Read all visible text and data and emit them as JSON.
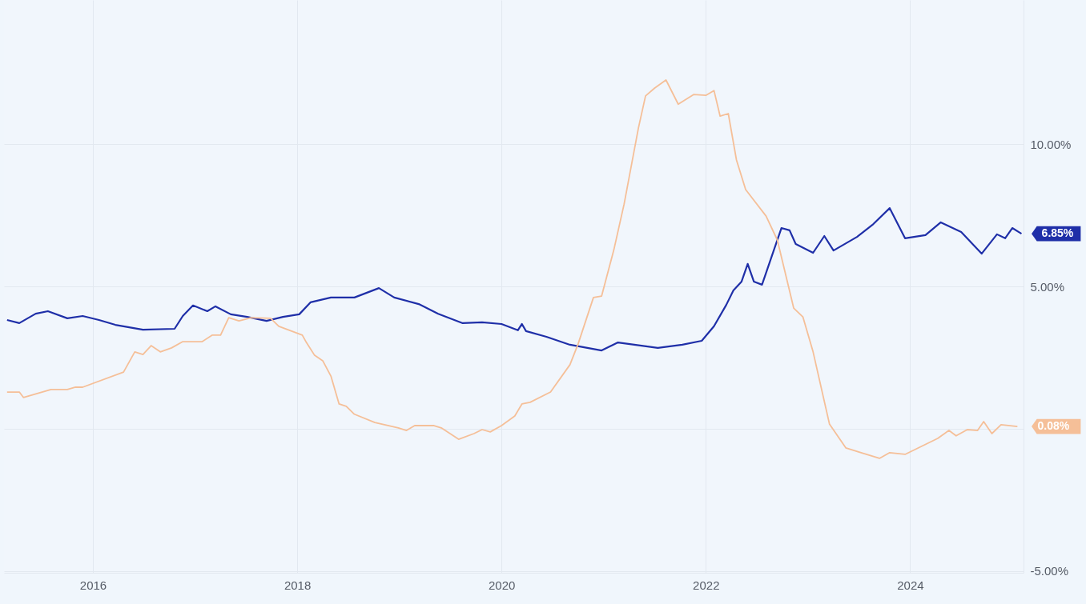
{
  "chart_data": {
    "type": "line",
    "xlim": [
      2015.13,
      2025.11
    ],
    "xticks": [
      2016,
      2018,
      2020,
      2022,
      2024
    ],
    "ylim": [
      -5.06,
      15.06
    ],
    "yticks": [
      {
        "value": 10,
        "label": "10.00%"
      },
      {
        "value": 5,
        "label": "5.00%"
      },
      {
        "value": 0,
        "label": null
      },
      {
        "value": -5,
        "label": "-5.00%"
      }
    ],
    "grid": true,
    "line_style": "solid",
    "marker": "none",
    "series": [
      {
        "color": "#1f2fa8",
        "x": [
          2015.16,
          2015.28,
          2015.44,
          2015.56,
          2015.75,
          2015.9,
          2016.06,
          2016.22,
          2016.49,
          2016.8,
          2016.88,
          2016.98,
          2017.12,
          2017.2,
          2017.35,
          2017.51,
          2017.7,
          2017.86,
          2018.02,
          2018.13,
          2018.33,
          2018.56,
          2018.8,
          2018.95,
          2019.19,
          2019.38,
          2019.62,
          2019.81,
          2020.0,
          2020.16,
          2020.2,
          2020.24,
          2020.44,
          2020.67,
          2020.98,
          2021.14,
          2021.3,
          2021.53,
          2021.77,
          2021.96,
          2022.08,
          2022.2,
          2022.27,
          2022.35,
          2022.41,
          2022.47,
          2022.55,
          2022.66,
          2022.74,
          2022.82,
          2022.88,
          2023.05,
          2023.16,
          2023.25,
          2023.48,
          2023.64,
          2023.8,
          2023.95,
          2024.15,
          2024.3,
          2024.5,
          2024.7,
          2024.85,
          2024.93,
          2025.0,
          2025.09
        ],
        "values": [
          3.82,
          3.71,
          4.04,
          4.13,
          3.88,
          3.96,
          3.82,
          3.65,
          3.48,
          3.51,
          3.96,
          4.33,
          4.13,
          4.3,
          4.02,
          3.93,
          3.79,
          3.93,
          4.02,
          4.44,
          4.61,
          4.61,
          4.94,
          4.61,
          4.38,
          4.04,
          3.71,
          3.74,
          3.68,
          3.46,
          3.68,
          3.43,
          3.23,
          2.95,
          2.75,
          3.03,
          2.95,
          2.84,
          2.95,
          3.09,
          3.6,
          4.35,
          4.86,
          5.17,
          5.79,
          5.17,
          5.06,
          6.21,
          7.05,
          6.97,
          6.49,
          6.18,
          6.77,
          6.26,
          6.74,
          7.19,
          7.75,
          6.69,
          6.8,
          7.25,
          6.91,
          6.15,
          6.83,
          6.69,
          7.05,
          6.85
        ]
      },
      {
        "color": "#f5bf98",
        "x": [
          2015.16,
          2015.28,
          2015.32,
          2015.59,
          2015.75,
          2015.83,
          2015.9,
          2016.3,
          2016.41,
          2016.49,
          2016.57,
          2016.66,
          2016.77,
          2016.88,
          2017.07,
          2017.17,
          2017.25,
          2017.33,
          2017.43,
          2017.55,
          2017.74,
          2017.82,
          2018.05,
          2018.09,
          2018.17,
          2018.25,
          2018.33,
          2018.41,
          2018.48,
          2018.56,
          2018.76,
          2018.99,
          2019.07,
          2019.15,
          2019.34,
          2019.41,
          2019.58,
          2019.73,
          2019.81,
          2019.89,
          2020.0,
          2020.13,
          2020.2,
          2020.28,
          2020.48,
          2020.67,
          2020.75,
          2020.9,
          2020.98,
          2021.1,
          2021.2,
          2021.34,
          2021.41,
          2021.5,
          2021.61,
          2021.73,
          2021.88,
          2022.0,
          2022.08,
          2022.14,
          2022.22,
          2022.3,
          2022.39,
          2022.59,
          2022.7,
          2022.86,
          2022.95,
          2023.05,
          2023.21,
          2023.37,
          2023.52,
          2023.7,
          2023.8,
          2023.95,
          2024.11,
          2024.27,
          2024.38,
          2024.45,
          2024.56,
          2024.66,
          2024.72,
          2024.8,
          2024.89,
          2025.05
        ],
        "values": [
          1.29,
          1.29,
          1.1,
          1.38,
          1.38,
          1.46,
          1.46,
          1.99,
          2.7,
          2.61,
          2.92,
          2.7,
          2.84,
          3.06,
          3.06,
          3.29,
          3.29,
          3.9,
          3.79,
          3.9,
          3.88,
          3.6,
          3.29,
          3.03,
          2.58,
          2.39,
          1.85,
          0.87,
          0.79,
          0.51,
          0.22,
          0.03,
          -0.06,
          0.11,
          0.11,
          0.03,
          -0.37,
          -0.17,
          -0.03,
          -0.11,
          0.11,
          0.45,
          0.87,
          0.93,
          1.29,
          2.25,
          2.98,
          4.61,
          4.66,
          6.29,
          7.89,
          10.56,
          11.69,
          11.97,
          12.25,
          11.4,
          11.74,
          11.71,
          11.88,
          10.98,
          11.07,
          9.44,
          8.4,
          7.47,
          6.63,
          4.24,
          3.93,
          2.7,
          0.17,
          -0.67,
          -0.84,
          -1.04,
          -0.84,
          -0.9,
          -0.62,
          -0.34,
          -0.06,
          -0.25,
          -0.03,
          -0.06,
          0.25,
          -0.17,
          0.14,
          0.08
        ]
      }
    ],
    "annotations": [
      {
        "text": "6.85%",
        "x": 2025.09,
        "y": 6.85
      },
      {
        "text": "0.08%",
        "x": 2025.05,
        "y": 0.08
      }
    ]
  }
}
